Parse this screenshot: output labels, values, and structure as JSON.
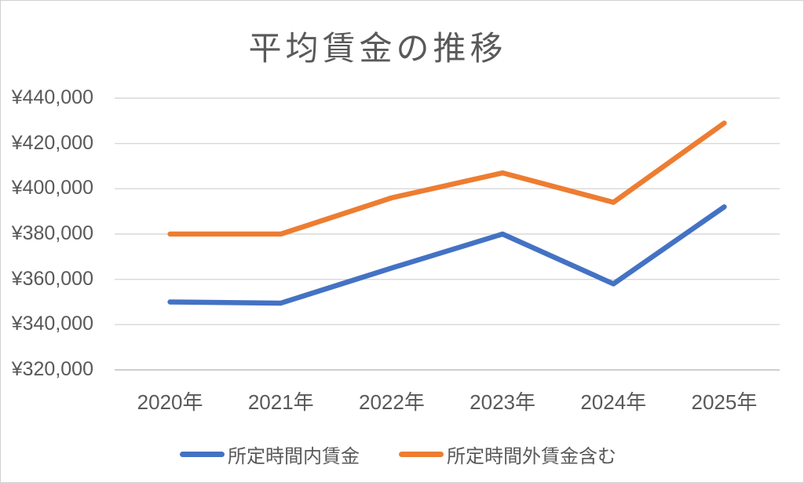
{
  "chart_data": {
    "type": "line",
    "title": "平均賃金の推移",
    "categories": [
      "2020年",
      "2021年",
      "2022年",
      "2023年",
      "2024年",
      "2025年"
    ],
    "series": [
      {
        "name": "所定時間内賃金",
        "color": "#4472C4",
        "values": [
          350000,
          349500,
          365000,
          380000,
          358000,
          392000
        ]
      },
      {
        "name": "所定時間外賃金含む",
        "color": "#ED7D31",
        "values": [
          380000,
          380000,
          396000,
          407000,
          394000,
          429000
        ]
      }
    ],
    "ylim": [
      320000,
      440000
    ],
    "yticks": [
      {
        "value": 320000,
        "label": "¥320,000"
      },
      {
        "value": 340000,
        "label": "¥340,000"
      },
      {
        "value": 360000,
        "label": "¥360,000"
      },
      {
        "value": 380000,
        "label": "¥380,000"
      },
      {
        "value": 400000,
        "label": "¥400,000"
      },
      {
        "value": 420000,
        "label": "¥420,000"
      },
      {
        "value": 440000,
        "label": "¥440,000"
      }
    ],
    "grid": true,
    "legend_position": "bottom",
    "colors": {
      "title_text": "#595959",
      "axis_text": "#595959",
      "gridline": "#D9D9D9",
      "axis_line": "#BFBFBF",
      "background": "#FFFFFF",
      "border": "#D0D0D0"
    }
  }
}
